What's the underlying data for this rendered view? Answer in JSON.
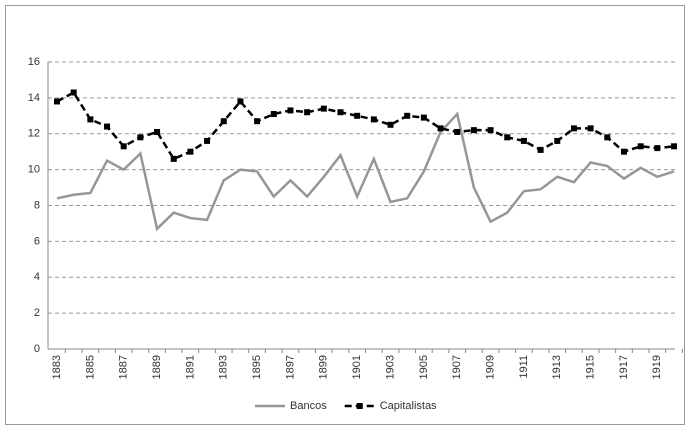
{
  "chart_data": {
    "type": "line",
    "categories": [
      "1883",
      null,
      "1885",
      null,
      "1887",
      null,
      "1889",
      null,
      "1891",
      null,
      "1893",
      null,
      "1895",
      null,
      "1897",
      null,
      "1899",
      null,
      "1901",
      null,
      "1903",
      null,
      "1905",
      null,
      "1907",
      null,
      "1909",
      null,
      "1911",
      null,
      "1913",
      null,
      "1915",
      null,
      "1917",
      null,
      "1919",
      null
    ],
    "series": [
      {
        "name": "Bancos",
        "color": "#969696",
        "dashed": false,
        "marker": "none",
        "values": [
          8.4,
          8.6,
          8.7,
          10.5,
          10.0,
          10.9,
          6.7,
          7.6,
          7.3,
          7.2,
          9.4,
          10.0,
          9.9,
          8.5,
          9.4,
          8.5,
          9.6,
          10.8,
          8.5,
          10.6,
          8.2,
          8.4,
          9.9,
          12.1,
          13.1,
          9.0,
          7.1,
          7.6,
          8.8,
          8.9,
          9.6,
          9.3,
          10.4,
          10.2,
          9.5,
          10.1,
          9.6,
          9.9
        ]
      },
      {
        "name": "Capitalistas",
        "color": "#000000",
        "dashed": true,
        "marker": "square",
        "values": [
          13.8,
          14.3,
          12.8,
          12.4,
          11.3,
          11.8,
          12.1,
          10.6,
          11.0,
          11.6,
          12.7,
          13.8,
          12.7,
          13.1,
          13.3,
          13.2,
          13.4,
          13.2,
          13.0,
          12.8,
          12.5,
          13.0,
          12.9,
          12.3,
          12.1,
          12.2,
          12.2,
          11.8,
          11.6,
          11.1,
          11.6,
          12.3,
          12.3,
          11.8,
          11.0,
          11.3,
          11.2,
          11.3
        ]
      }
    ],
    "ylim": [
      0,
      16
    ],
    "yticks": [
      0,
      2,
      4,
      6,
      8,
      10,
      12,
      14,
      16
    ],
    "grid": true,
    "legend": "bottom"
  }
}
